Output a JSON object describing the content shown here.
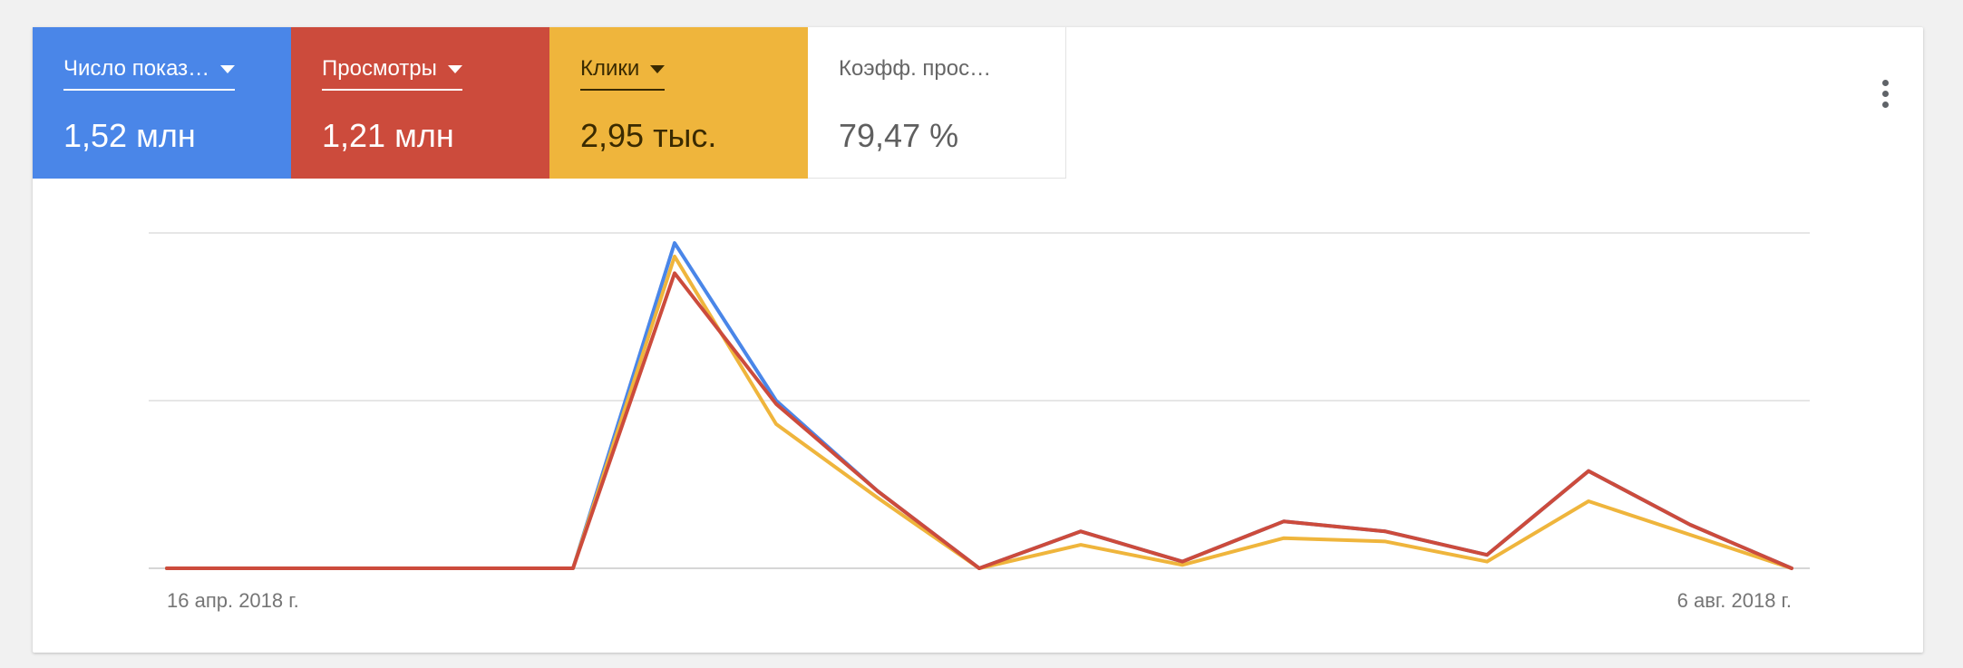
{
  "metrics": [
    {
      "label": "Число показ…",
      "value": "1,52 млн",
      "color": "#4a86e8"
    },
    {
      "label": "Просмотры",
      "value": "1,21 млн",
      "color": "#cc4b3c"
    },
    {
      "label": "Клики",
      "value": "2,95 тыс.",
      "color": "#efb53c"
    },
    {
      "label": "Коэфф. прос…",
      "value": "79,47 %"
    }
  ],
  "menu_icon": "more-vert-icon",
  "chart_data": {
    "type": "line",
    "title": "",
    "xlabel": "",
    "ylabel": "",
    "grid": true,
    "ylim": [
      0,
      100
    ],
    "x_tick_labels": [
      "16 апр. 2018 г.",
      "6 авг. 2018 г."
    ],
    "series": [
      {
        "name": "Число показ…",
        "color": "#4a86e8",
        "values": [
          0,
          0,
          0,
          0,
          0,
          97,
          50,
          23,
          0,
          11,
          2,
          14,
          11,
          4,
          29,
          13,
          0
        ]
      },
      {
        "name": "Клики",
        "color": "#efb53c",
        "values": [
          0,
          0,
          0,
          0,
          0,
          93,
          43,
          21,
          0,
          7,
          1,
          9,
          8,
          2,
          20,
          10,
          0
        ]
      },
      {
        "name": "Просмотры",
        "color": "#cc4b3c",
        "values": [
          0,
          0,
          0,
          0,
          0,
          88,
          49,
          23,
          0,
          11,
          2,
          14,
          11,
          4,
          29,
          13,
          0
        ]
      }
    ]
  }
}
